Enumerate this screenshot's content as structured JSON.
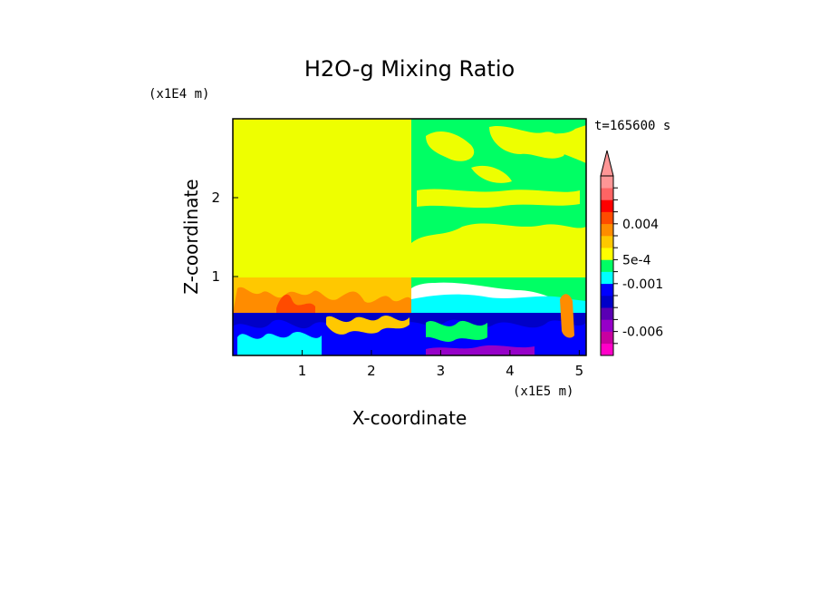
{
  "chart_data": {
    "type": "heatmap",
    "title": "H2O-g Mixing Ratio",
    "xlabel": "X-coordinate",
    "ylabel": "Z-coordinate",
    "x_unit": "(x1E5 m)",
    "y_unit": "(x1E4 m)",
    "time_label": "t=165600 s",
    "x_ticks": [
      "1",
      "2",
      "3",
      "4",
      "5"
    ],
    "x_tick_values": [
      1,
      2,
      3,
      4,
      5
    ],
    "y_ticks": [
      "1",
      "2"
    ],
    "y_tick_values": [
      1,
      2
    ],
    "xlim": [
      0,
      5.1
    ],
    "ylim": [
      0,
      3.0
    ],
    "colorbar": {
      "labels": [
        "0.004",
        "5e-4",
        "-0.001",
        "-0.006"
      ],
      "levels": [
        -0.01,
        -0.008,
        -0.006,
        -0.004,
        -0.002,
        -0.001,
        -0.0005,
        0.0,
        0.0005,
        0.001,
        0.002,
        0.004,
        0.006,
        0.008
      ],
      "colors": [
        "#ff00c8",
        "#c800a0",
        "#9600c8",
        "#5a00b4",
        "#0000c8",
        "#0000ff",
        "#00ffff",
        "#00ff64",
        "#ffff00",
        "#ffc800",
        "#ff8c00",
        "#ff4b00",
        "#ff0000",
        "#ff6464",
        "#ff9696"
      ],
      "extend": "max"
    },
    "regions": [
      {
        "name": "upper-left",
        "x": [
          0,
          2.6
        ],
        "z": [
          1.0,
          3.0
        ],
        "color": "#eeff00"
      },
      {
        "name": "upper-right",
        "x": [
          2.6,
          5.1
        ],
        "z": [
          1.5,
          3.0
        ],
        "color": "#00ff64"
      },
      {
        "name": "lower-band",
        "x": [
          0,
          5.1
        ],
        "z": [
          0.6,
          1.0
        ],
        "color": "#ffc800"
      },
      {
        "name": "boundary-layer",
        "x": [
          0,
          5.1
        ],
        "z": [
          0,
          0.6
        ],
        "color": "#0000c8"
      }
    ]
  },
  "colors": {
    "background": "#ffffff",
    "frame": "#000000"
  }
}
